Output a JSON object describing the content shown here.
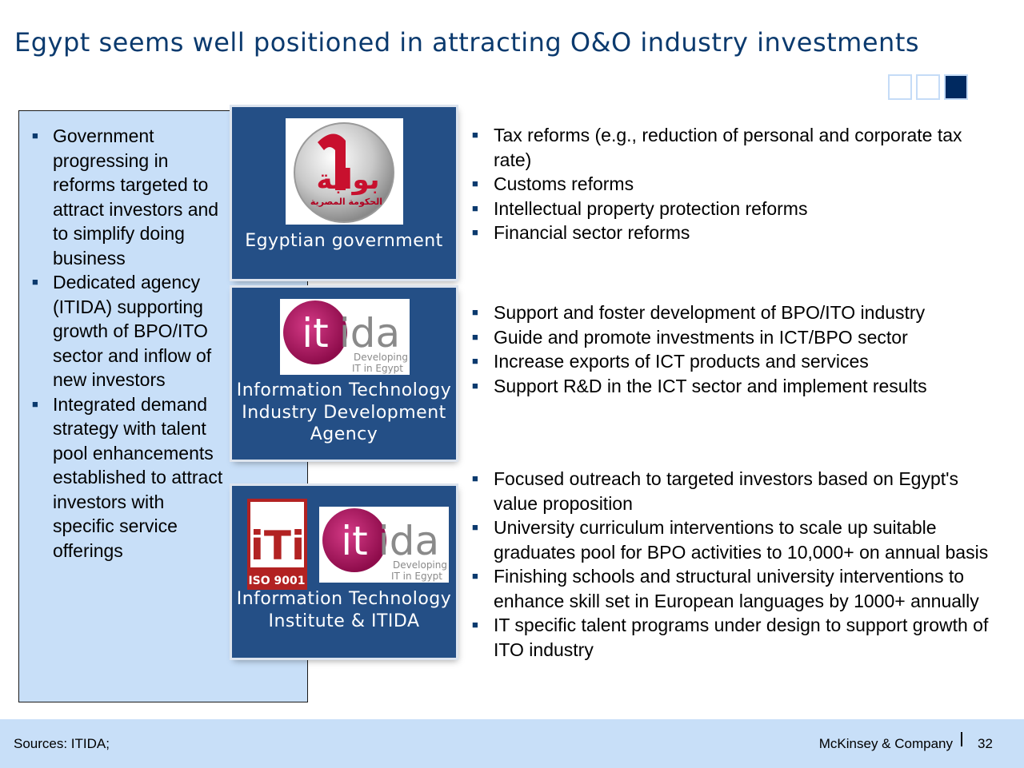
{
  "title": "Egypt seems well positioned in attracting O&O industry investments",
  "left_panel": {
    "items": [
      "Government progressing in reforms targeted to attract investors and to simplify doing business",
      "Dedicated agency (ITIDA) supporting growth of BPO/ITO sector and inflow of new investors",
      "Integrated demand strategy with talent pool enhancements established to attract investors with specific service offerings"
    ]
  },
  "boxes": [
    {
      "caption": "Egyptian government",
      "logo_text_ar": "بوابة",
      "logo_sub_ar": "الحكومة المصرية"
    },
    {
      "caption": "Information Technology Industry Development Agency",
      "logo": {
        "it": "it",
        "ida": "ida",
        "tag1": "Developing",
        "tag2": "IT in Egypt"
      }
    },
    {
      "caption": "Information Technology Institute & ITIDA",
      "iti_logo": {
        "letters": "iTi",
        "badge": "ISO 9001"
      },
      "logo": {
        "it": "it",
        "ida": "ida",
        "tag1": "Developing",
        "tag2": "IT in Egypt"
      }
    }
  ],
  "right_lists": [
    [
      "Tax reforms (e.g., reduction of personal and corporate tax rate)",
      "Customs reforms",
      "Intellectual property protection reforms",
      "Financial sector reforms"
    ],
    [
      "Support and foster development of BPO/ITO industry",
      "Guide and promote investments in ICT/BPO sector",
      "Increase exports of ICT products and services",
      "Support R&D in the ICT sector and implement results"
    ],
    [
      "Focused outreach to targeted investors based on Egypt's value proposition",
      "University curriculum interventions to scale up suitable graduates pool for BPO activities to 10,000+ on annual basis",
      "Finishing schools and structural university interventions to enhance skill set in European languages by 1000+ annually",
      "IT specific talent programs under design to support growth of ITO industry"
    ]
  ],
  "footer": {
    "sources": "Sources: ITIDA;",
    "company": "McKinsey & Company",
    "page": "32"
  },
  "colors": {
    "title": "#0b3a6e",
    "panel_bg": "#c8dff8",
    "box_bg": "#244f86",
    "tracker_active": "#002960",
    "itida_magenta": "#a5125a"
  }
}
